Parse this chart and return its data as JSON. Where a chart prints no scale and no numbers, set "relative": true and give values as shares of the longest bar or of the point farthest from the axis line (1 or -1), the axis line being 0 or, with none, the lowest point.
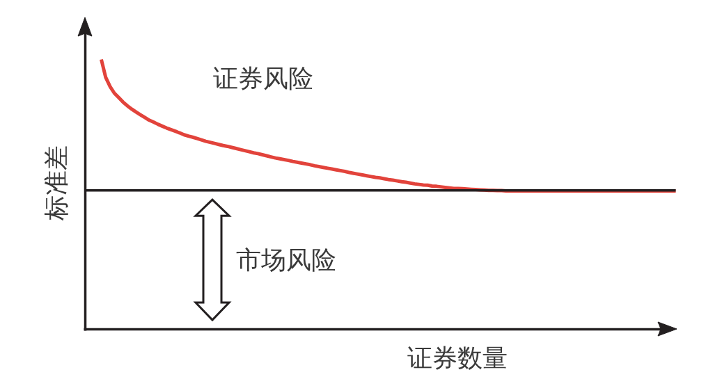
{
  "chart_data": {
    "type": "line",
    "relative": true,
    "xlabel": "证券数量",
    "ylabel": "标准差",
    "categories": [
      null,
      null,
      null,
      null,
      null,
      null,
      null,
      null,
      null,
      null,
      null,
      null,
      null,
      null,
      null,
      null,
      null,
      null,
      null,
      null,
      null,
      null,
      null,
      null,
      null,
      null,
      null,
      null,
      null,
      null,
      null,
      null,
      null,
      null,
      null,
      null,
      null,
      null,
      null,
      null,
      null,
      null,
      null,
      null,
      null,
      null,
      null,
      null,
      null,
      null,
      null,
      null,
      null,
      null,
      null,
      null,
      null,
      null,
      null,
      null,
      null,
      null,
      null,
      null,
      null,
      null,
      null,
      null,
      null,
      null,
      null,
      null,
      null,
      null,
      null,
      null,
      null,
      null,
      null,
      null,
      null,
      null,
      null,
      null,
      null,
      null,
      null,
      null,
      null,
      null,
      null,
      null,
      null,
      null,
      null,
      null,
      null,
      null,
      null,
      null,
      null,
      null,
      null,
      null,
      null,
      null,
      null,
      null,
      null,
      null,
      null,
      null,
      null,
      null,
      null,
      null,
      null,
      null,
      null,
      null,
      null,
      null,
      null,
      null,
      null,
      null,
      null,
      null,
      null,
      null,
      null,
      null,
      null
    ],
    "series": [
      {
        "color": "#e2433b",
        "values": [
          1.0,
          0.934,
          0.9,
          0.875,
          0.859,
          0.842,
          0.828,
          0.816,
          0.805,
          0.795,
          0.785,
          0.775,
          0.768,
          0.76,
          0.753,
          0.746,
          0.74,
          0.734,
          0.728,
          0.721,
          0.716,
          0.712,
          0.707,
          0.702,
          0.697,
          0.693,
          0.689,
          0.685,
          0.681,
          0.678,
          0.674,
          0.67,
          0.666,
          0.662,
          0.658,
          0.654,
          0.651,
          0.647,
          0.643,
          0.639,
          0.635,
          0.632,
          0.629,
          0.626,
          0.622,
          0.619,
          0.616,
          0.613,
          0.61,
          0.606,
          0.603,
          0.6,
          0.597,
          0.594,
          0.591,
          0.588,
          0.585,
          0.581,
          0.578,
          0.575,
          0.572,
          0.569,
          0.566,
          0.563,
          0.561,
          0.558,
          0.555,
          0.553,
          0.55,
          0.547,
          0.545,
          0.542,
          0.539,
          0.537,
          0.535,
          0.534,
          0.531,
          0.53,
          0.528,
          0.526,
          0.524,
          0.522,
          0.522,
          0.521,
          0.52,
          0.519,
          0.518,
          0.517,
          0.516,
          0.515,
          0.515,
          0.514,
          0.514,
          0.513,
          0.513,
          0.513,
          0.513,
          0.513,
          0.513,
          0.513,
          0.513,
          0.513,
          0.513,
          0.513,
          0.513,
          0.513,
          0.513,
          0.513,
          0.513,
          0.513,
          0.513,
          0.513,
          0.513,
          0.513,
          0.513,
          0.513,
          0.513,
          0.513,
          0.513,
          0.513,
          0.513,
          0.513,
          0.513,
          0.513,
          0.513,
          0.513,
          0.513,
          0.513,
          0.513,
          0.513,
          0.513,
          0.513,
          0.513
        ]
      }
    ],
    "ref_lines": [
      {
        "axis": "y",
        "value": 0.515,
        "color": "#231f20"
      }
    ],
    "annotations": [
      "证券风险",
      "市场风险"
    ]
  }
}
